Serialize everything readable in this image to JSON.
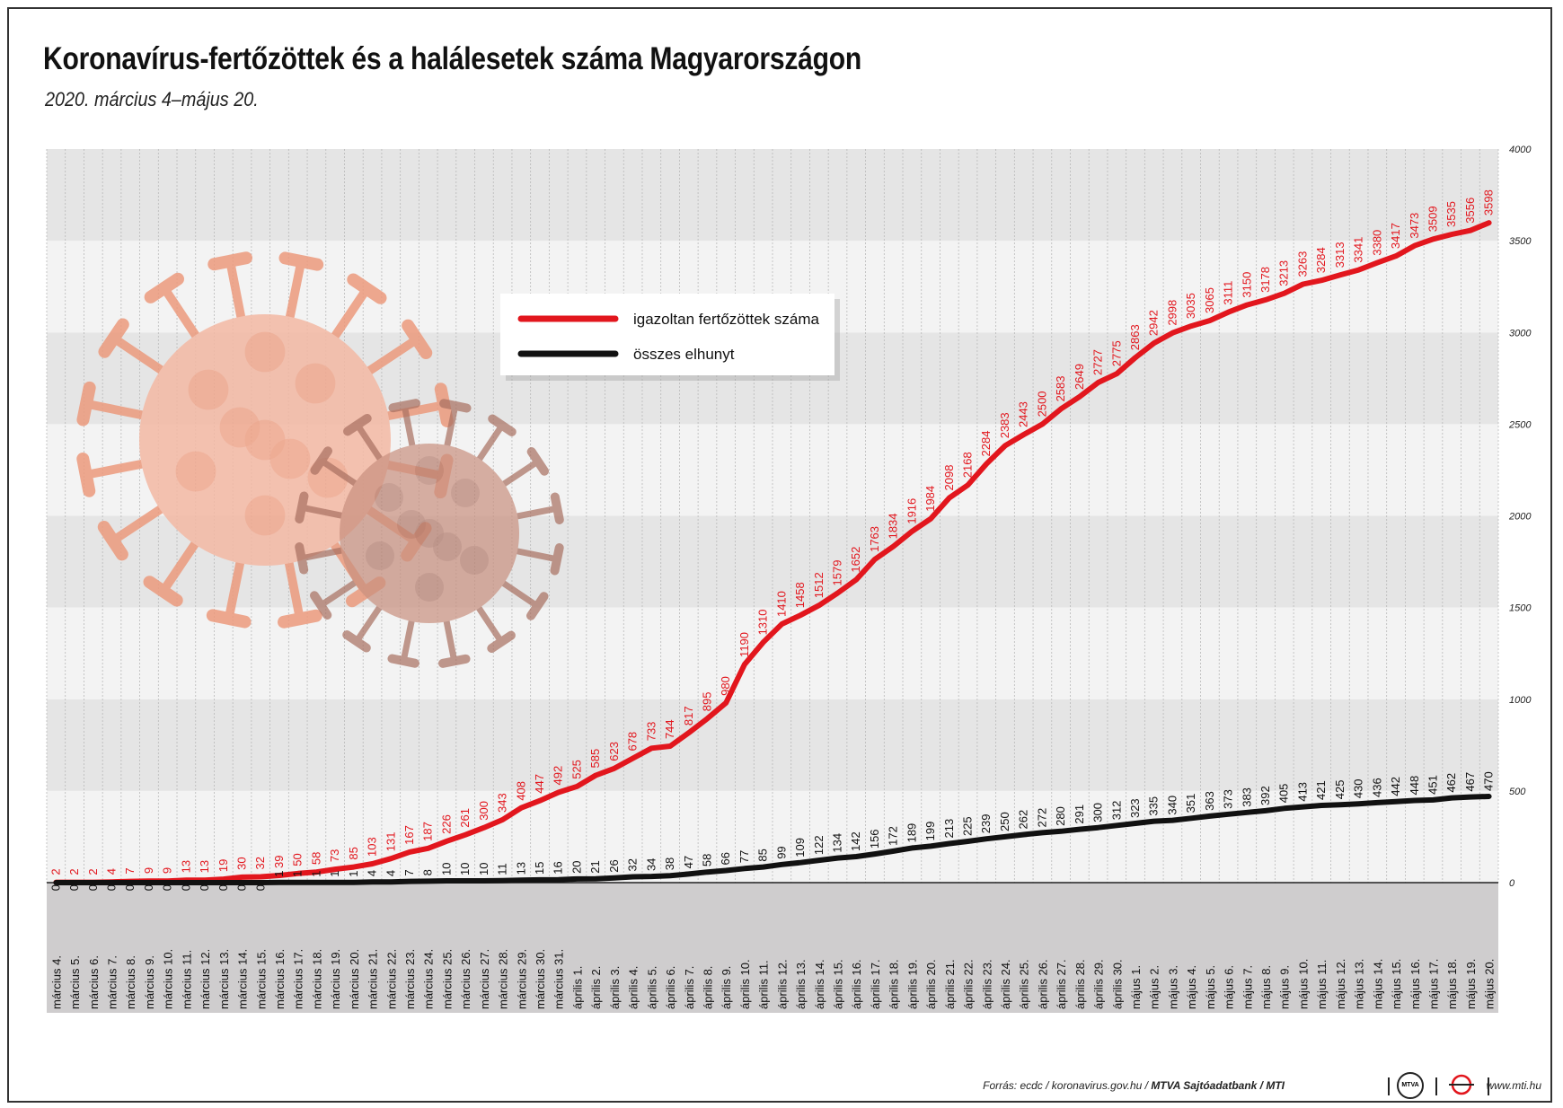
{
  "title": "Koronavírus-fertőzöttek és a halálesetek száma Magyarországon",
  "subtitle": "2020. március 4–május 20.",
  "chart_data": {
    "type": "line",
    "categories": [
      "március 4.",
      "március 5.",
      "március 6.",
      "március 7.",
      "március 8.",
      "március 9.",
      "március 10.",
      "március 11.",
      "március 12.",
      "március 13.",
      "március 14.",
      "március 15.",
      "március 16.",
      "március 17.",
      "március 18.",
      "március 19.",
      "március 20.",
      "március 21.",
      "március 22.",
      "március 23.",
      "március 24.",
      "március 25.",
      "március 26.",
      "március 27.",
      "március 28.",
      "március 29.",
      "március 30.",
      "március 31.",
      "április 1.",
      "április 2.",
      "április 3.",
      "április 4.",
      "április 5.",
      "április 6.",
      "április 7.",
      "április 8.",
      "április 9.",
      "április 10.",
      "április 11.",
      "április 12.",
      "április 13.",
      "április 14.",
      "április 15.",
      "április 16.",
      "április 17.",
      "április 18.",
      "április 19.",
      "április 20.",
      "április 21.",
      "április 22.",
      "április 23.",
      "április 24.",
      "április 25.",
      "április 26.",
      "április 27.",
      "április 28.",
      "április 29.",
      "április 30.",
      "május 1.",
      "május 2.",
      "május 3.",
      "május 4.",
      "május 5.",
      "május 6.",
      "május 7.",
      "május 8.",
      "május 9.",
      "május 10.",
      "május 11.",
      "május 12.",
      "május 13.",
      "május 14.",
      "május 15.",
      "május 16.",
      "május 17.",
      "május 18.",
      "május 19.",
      "május 20."
    ],
    "series": [
      {
        "name": "igazoltan fertőzöttek száma",
        "color": "#e2161d",
        "values": [
          2,
          2,
          2,
          4,
          7,
          9,
          9,
          13,
          13,
          19,
          30,
          32,
          39,
          50,
          58,
          73,
          85,
          103,
          131,
          167,
          187,
          226,
          261,
          300,
          343,
          408,
          447,
          492,
          525,
          585,
          623,
          678,
          733,
          744,
          817,
          895,
          980,
          1190,
          1310,
          1410,
          1458,
          1512,
          1579,
          1652,
          1763,
          1834,
          1916,
          1984,
          2098,
          2168,
          2284,
          2383,
          2443,
          2500,
          2583,
          2649,
          2727,
          2775,
          2863,
          2942,
          2998,
          3035,
          3065,
          3111,
          3150,
          3178,
          3213,
          3263,
          3284,
          3313,
          3341,
          3380,
          3417,
          3473,
          3509,
          3535,
          3556,
          3598
        ]
      },
      {
        "name": "összes elhunyt",
        "color": "#111111",
        "values": [
          0,
          0,
          0,
          0,
          0,
          0,
          0,
          0,
          0,
          0,
          0,
          0,
          1,
          1,
          1,
          1,
          1,
          4,
          4,
          7,
          8,
          10,
          10,
          10,
          11,
          13,
          15,
          16,
          20,
          21,
          26,
          32,
          34,
          38,
          47,
          58,
          66,
          77,
          85,
          99,
          109,
          122,
          134,
          142,
          156,
          172,
          189,
          199,
          213,
          225,
          239,
          250,
          262,
          272,
          280,
          291,
          300,
          312,
          323,
          335,
          340,
          351,
          363,
          373,
          383,
          392,
          405,
          413,
          421,
          425,
          430,
          436,
          442,
          448,
          451,
          462,
          467,
          470
        ]
      }
    ],
    "yticks": [
      0,
      500,
      1000,
      1500,
      2000,
      2500,
      3000,
      3500,
      4000
    ],
    "ylim": [
      0,
      4000
    ],
    "grid": true,
    "legend_position": "top-center"
  },
  "footer": {
    "source_prefix": "Forrás: ecdc / koronavirus.gov.hu / ",
    "source_bold": "MTVA Sajtóadatbank / MTI",
    "logo_text": "MTVA",
    "url": "www.mti.hu"
  }
}
